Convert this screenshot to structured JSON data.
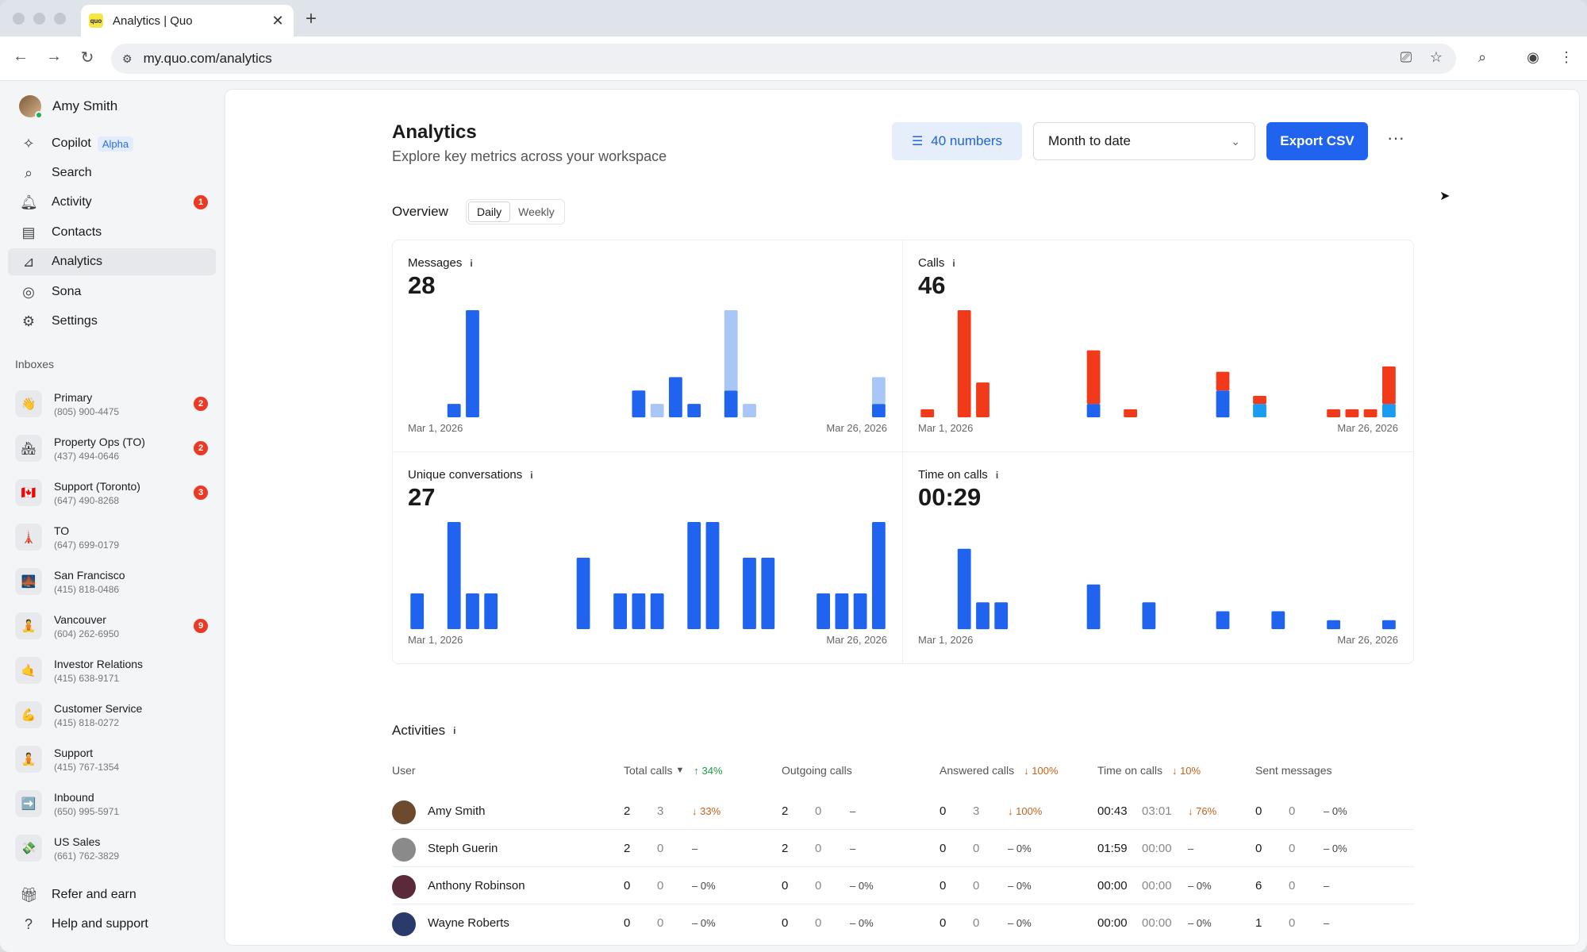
{
  "browser": {
    "tab_title": "Analytics | Quo",
    "tab_favicon": "quo",
    "url": "my.quo.com/analytics"
  },
  "sidebar": {
    "user_name": "Amy Smith",
    "nav": [
      {
        "icon": "sparkle-icon",
        "label": "Copilot",
        "tag": "Alpha"
      },
      {
        "icon": "search-icon",
        "label": "Search"
      },
      {
        "icon": "bell-icon",
        "label": "Activity",
        "badge": "1"
      },
      {
        "icon": "contacts-icon",
        "label": "Contacts"
      },
      {
        "icon": "analytics-icon",
        "label": "Analytics",
        "active": true
      },
      {
        "icon": "sona-icon",
        "label": "Sona"
      },
      {
        "icon": "gear-icon",
        "label": "Settings"
      }
    ],
    "inboxes_label": "Inboxes",
    "inboxes": [
      {
        "emoji": "👋",
        "name": "Primary",
        "number": "(805) 900-4475",
        "badge": "2"
      },
      {
        "emoji": "🏘",
        "name": "Property Ops (TO)",
        "number": "(437) 494-0646",
        "badge": "2"
      },
      {
        "emoji": "🇨🇦",
        "name": "Support (Toronto)",
        "number": "(647) 490-8268",
        "badge": "3"
      },
      {
        "emoji": "🗼",
        "name": "TO",
        "number": "(647) 699-0179",
        "badge": ""
      },
      {
        "emoji": "🌉",
        "name": "San Francisco",
        "number": "(415) 818-0486",
        "badge": ""
      },
      {
        "emoji": "🧘",
        "name": "Vancouver",
        "number": "(604) 262-6950",
        "badge": "9"
      },
      {
        "emoji": "🤙",
        "name": "Investor Relations",
        "number": "(415) 638-9171",
        "badge": ""
      },
      {
        "emoji": "💪",
        "name": "Customer Service",
        "number": "(415) 818-0272",
        "badge": ""
      },
      {
        "emoji": "🧘",
        "name": "Support",
        "number": "(415) 767-1354",
        "badge": ""
      },
      {
        "emoji": "➡️",
        "name": "Inbound",
        "number": "(650) 995-5971",
        "badge": ""
      },
      {
        "emoji": "💸",
        "name": "US Sales",
        "number": "(661) 762-3829",
        "badge": ""
      }
    ],
    "footer": [
      {
        "icon": "gift-icon",
        "label": "Refer and earn"
      },
      {
        "icon": "help-icon",
        "label": "Help and support"
      }
    ]
  },
  "header": {
    "title": "Analytics",
    "subtitle": "Explore key metrics across your workspace",
    "numbers_filter": "40 numbers",
    "date_range": "Month to date",
    "export_label": "Export CSV",
    "more_label": "···"
  },
  "overview": {
    "label": "Overview",
    "tabs": [
      "Daily",
      "Weekly"
    ],
    "active_tab": "Daily"
  },
  "colors": {
    "primary": "#1f63ee",
    "primary_light": "#a8c7f7",
    "red": "#f03a1a",
    "cyan": "#1a9cf0"
  },
  "chart_data": [
    {
      "type": "bar",
      "title": "Messages",
      "total": "28",
      "x_start": "Mar 1, 2026",
      "x_end": "Mar 26, 2026",
      "ymax": 8,
      "series": [
        {
          "values": [
            0,
            0,
            1,
            8,
            0,
            0,
            0,
            0,
            0,
            0,
            0,
            0,
            2,
            0,
            3,
            1,
            0,
            2,
            0,
            0,
            0,
            0,
            0,
            0,
            0,
            1
          ]
        },
        {
          "values": [
            0,
            0,
            0,
            0,
            0,
            0,
            0,
            0,
            0,
            0,
            0,
            0,
            0,
            1,
            0,
            0,
            0,
            6,
            1,
            0,
            0,
            0,
            0,
            0,
            0,
            2
          ]
        }
      ]
    },
    {
      "type": "bar",
      "title": "Calls",
      "total": "46",
      "x_start": "Mar 1, 2026",
      "x_end": "Mar 26, 2026",
      "ymax": 8,
      "series": [
        {
          "values": [
            0,
            0,
            0,
            0,
            0,
            0,
            0,
            0,
            0,
            1,
            0,
            0,
            0,
            0,
            0,
            0,
            2,
            0,
            0,
            0,
            0,
            0,
            0,
            0,
            0,
            0
          ]
        },
        {
          "values": [
            0,
            0,
            0,
            0,
            0,
            0,
            0,
            0,
            0,
            0,
            0,
            0,
            0,
            0,
            0,
            0,
            0,
            0,
            1,
            0,
            0,
            0,
            0,
            0,
            0,
            1
          ]
        },
        {
          "values": [
            0.6,
            0,
            8,
            2.6,
            0,
            0,
            0,
            0,
            0,
            4,
            0,
            0.6,
            0,
            0,
            0,
            0,
            1.4,
            0,
            0.6,
            0,
            0,
            0,
            0.6,
            0.6,
            0.6,
            2.8
          ]
        }
      ]
    },
    {
      "type": "bar",
      "title": "Unique conversations",
      "total": "27",
      "x_start": "Mar 1, 2026",
      "x_end": "Mar 26, 2026",
      "ymax": 3,
      "series": [
        {
          "values": [
            1,
            0,
            3,
            1,
            1,
            0,
            0,
            0,
            0,
            2,
            0,
            1,
            1,
            1,
            0,
            3,
            3,
            0,
            2,
            2,
            0,
            0,
            1,
            1,
            1,
            3
          ]
        }
      ]
    },
    {
      "type": "bar",
      "title": "Time on calls",
      "total": "00:29",
      "x_start": "Mar 1, 2026",
      "x_end": "Mar 26, 2026",
      "ymax": 6,
      "series": [
        {
          "values": [
            0,
            0,
            4.5,
            1.5,
            1.5,
            0,
            0,
            0,
            0,
            2.5,
            0,
            0,
            1.5,
            0,
            0,
            0,
            1,
            0,
            0,
            1,
            0,
            0,
            0.5,
            0,
            0,
            0.5
          ]
        }
      ]
    }
  ],
  "activities": {
    "title": "Activities",
    "columns": {
      "user": "User",
      "total_calls": "Total calls",
      "total_calls_delta": "34%",
      "outgoing_calls": "Outgoing calls",
      "answered_calls": "Answered calls",
      "answered_calls_delta": "100%",
      "time_on_calls": "Time on calls",
      "time_on_calls_delta": "10%",
      "sent_messages": "Sent messages"
    },
    "rows": [
      {
        "name": "Amy Smith",
        "avatar_color": "#6b4a2e",
        "tc": "2",
        "tc_prev": "3",
        "tc_d": "↓ 33%",
        "tc_d_dir": "down",
        "oc": "2",
        "oc_prev": "0",
        "oc_d": "–",
        "oc_d_dir": "flat",
        "ac": "0",
        "ac_prev": "3",
        "ac_d": "↓ 100%",
        "ac_d_dir": "down",
        "toc": "00:43",
        "toc_prev": "03:01",
        "toc_d": "↓ 76%",
        "toc_d_dir": "down",
        "sm": "0",
        "sm_prev": "0",
        "sm_d": "– 0%",
        "sm_d_dir": "flat"
      },
      {
        "name": "Steph Guerin",
        "avatar_color": "#8a8a8a",
        "tc": "2",
        "tc_prev": "0",
        "tc_d": "–",
        "tc_d_dir": "flat",
        "oc": "2",
        "oc_prev": "0",
        "oc_d": "–",
        "oc_d_dir": "flat",
        "ac": "0",
        "ac_prev": "0",
        "ac_d": "– 0%",
        "ac_d_dir": "flat",
        "toc": "01:59",
        "toc_prev": "00:00",
        "toc_d": "–",
        "toc_d_dir": "flat",
        "sm": "0",
        "sm_prev": "0",
        "sm_d": "– 0%",
        "sm_d_dir": "flat"
      },
      {
        "name": "Anthony Robinson",
        "avatar_color": "#5a2a3a",
        "tc": "0",
        "tc_prev": "0",
        "tc_d": "– 0%",
        "tc_d_dir": "flat",
        "oc": "0",
        "oc_prev": "0",
        "oc_d": "– 0%",
        "oc_d_dir": "flat",
        "ac": "0",
        "ac_prev": "0",
        "ac_d": "– 0%",
        "ac_d_dir": "flat",
        "toc": "00:00",
        "toc_prev": "00:00",
        "toc_d": "– 0%",
        "toc_d_dir": "flat",
        "sm": "6",
        "sm_prev": "0",
        "sm_d": "–",
        "sm_d_dir": "flat"
      },
      {
        "name": "Wayne Roberts",
        "avatar_color": "#2a3a6a",
        "tc": "0",
        "tc_prev": "0",
        "tc_d": "– 0%",
        "tc_d_dir": "flat",
        "oc": "0",
        "oc_prev": "0",
        "oc_d": "– 0%",
        "oc_d_dir": "flat",
        "ac": "0",
        "ac_prev": "0",
        "ac_d": "– 0%",
        "ac_d_dir": "flat",
        "toc": "00:00",
        "toc_prev": "00:00",
        "toc_d": "– 0%",
        "toc_d_dir": "flat",
        "sm": "1",
        "sm_prev": "0",
        "sm_d": "–",
        "sm_d_dir": "flat"
      }
    ]
  }
}
